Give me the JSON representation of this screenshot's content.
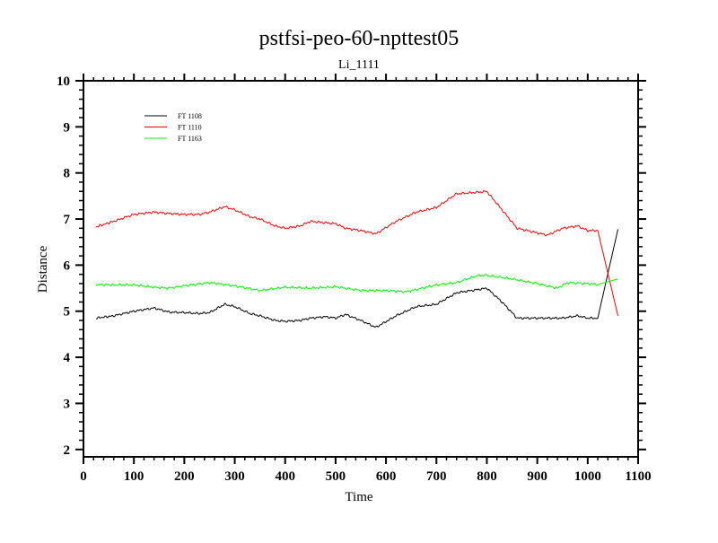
{
  "chart_data": {
    "type": "line",
    "title": "pstfsi-peo-60-npttest05",
    "subtitle": "Li_1111",
    "xlabel": "Time",
    "ylabel": "Distance",
    "xlim": [
      0,
      1100
    ],
    "ylim": [
      1.84,
      10
    ],
    "xticks": [
      0,
      100,
      200,
      300,
      400,
      500,
      600,
      700,
      800,
      900,
      1000,
      1100
    ],
    "yticks": [
      2,
      3,
      4,
      5,
      6,
      7,
      8,
      9,
      10
    ],
    "grid": false,
    "legend_placement": "top-left",
    "series": [
      {
        "name": "FT 1108",
        "color": "#000000",
        "x": [
          25,
          60,
          100,
          140,
          170,
          200,
          230,
          250,
          280,
          300,
          330,
          350,
          380,
          400,
          430,
          450,
          480,
          500,
          520,
          550,
          580,
          620,
          660,
          700,
          740,
          770,
          800,
          830,
          860,
          900,
          950,
          980,
          1000,
          1020,
          1060
        ],
        "y": [
          4.85,
          4.9,
          5.0,
          5.07,
          4.98,
          4.97,
          4.95,
          4.97,
          5.15,
          5.1,
          4.95,
          4.9,
          4.8,
          4.78,
          4.8,
          4.85,
          4.88,
          4.85,
          4.93,
          4.8,
          4.65,
          4.9,
          5.1,
          5.15,
          5.4,
          5.45,
          5.5,
          5.2,
          4.85,
          4.85,
          4.85,
          4.9,
          4.85,
          4.85,
          6.78
        ]
      },
      {
        "name": "FT 1110",
        "color": "#ff0000",
        "x": [
          25,
          60,
          100,
          140,
          170,
          200,
          230,
          250,
          280,
          300,
          330,
          350,
          380,
          400,
          430,
          450,
          480,
          500,
          520,
          550,
          580,
          620,
          660,
          700,
          740,
          770,
          800,
          830,
          860,
          900,
          920,
          950,
          980,
          1000,
          1020,
          1060
        ],
        "y": [
          6.83,
          6.95,
          7.1,
          7.15,
          7.12,
          7.1,
          7.1,
          7.15,
          7.27,
          7.2,
          7.05,
          7.0,
          6.85,
          6.8,
          6.85,
          6.95,
          6.92,
          6.9,
          6.8,
          6.75,
          6.68,
          6.95,
          7.15,
          7.25,
          7.55,
          7.57,
          7.6,
          7.2,
          6.8,
          6.7,
          6.65,
          6.8,
          6.85,
          6.75,
          6.75,
          4.9
        ]
      },
      {
        "name": "FT 1163",
        "color": "#00ff00",
        "x": [
          25,
          60,
          100,
          140,
          170,
          200,
          250,
          300,
          350,
          400,
          450,
          500,
          550,
          600,
          640,
          700,
          740,
          780,
          800,
          850,
          900,
          940,
          960,
          1000,
          1020,
          1060
        ],
        "y": [
          5.58,
          5.57,
          5.57,
          5.52,
          5.5,
          5.55,
          5.62,
          5.55,
          5.45,
          5.52,
          5.5,
          5.53,
          5.45,
          5.45,
          5.42,
          5.57,
          5.62,
          5.77,
          5.78,
          5.7,
          5.6,
          5.5,
          5.62,
          5.6,
          5.58,
          5.7
        ]
      }
    ]
  }
}
